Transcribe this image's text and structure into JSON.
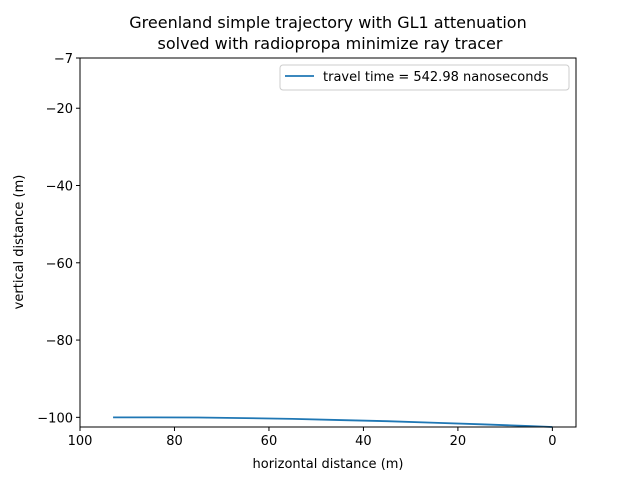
{
  "chart_data": {
    "type": "line",
    "title_line1": "Greenland simple trajectory with GL1 attenuation",
    "title_line2": "solved with radiopropa minimize ray tracer",
    "xlabel": "horizontal distance (m)",
    "ylabel": "vertical distance (m)",
    "xlim": [
      100,
      -5
    ],
    "ylim": [
      -102.5,
      -7
    ],
    "xticks": [
      100,
      80,
      60,
      40,
      20,
      0
    ],
    "xtick_labels": [
      "100",
      "80",
      "60",
      "40",
      "20",
      "0"
    ],
    "yticks": [
      -7,
      -20,
      -40,
      -60,
      -80,
      -100
    ],
    "ytick_labels": [
      "−7",
      "−20",
      "−40",
      "−60",
      "−80",
      "−100"
    ],
    "grid": false,
    "legend_position": "top-right",
    "series": [
      {
        "name": "travel time = 542.98 nanoseconds",
        "color": "#1f77b4",
        "x": [
          93,
          85,
          75,
          65,
          55,
          45,
          35,
          25,
          15,
          5,
          0
        ],
        "y": [
          -100.0,
          -100.0,
          -100.05,
          -100.2,
          -100.4,
          -100.7,
          -101.0,
          -101.4,
          -101.8,
          -102.25,
          -102.5
        ]
      }
    ]
  }
}
